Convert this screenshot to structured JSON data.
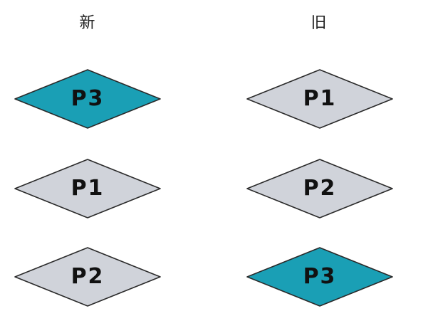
{
  "columns": {
    "new": {
      "title": "新",
      "items": [
        {
          "label": "P3",
          "highlighted": true
        },
        {
          "label": "P1",
          "highlighted": false
        },
        {
          "label": "P2",
          "highlighted": false
        }
      ]
    },
    "old": {
      "title": "旧",
      "items": [
        {
          "label": "P1",
          "highlighted": false
        },
        {
          "label": "P2",
          "highlighted": false
        },
        {
          "label": "P3",
          "highlighted": true
        }
      ]
    }
  },
  "colors": {
    "highlight_fill": "#1a9fb5",
    "normal_fill": "#d0d3da",
    "stroke": "#2a2a2a"
  }
}
